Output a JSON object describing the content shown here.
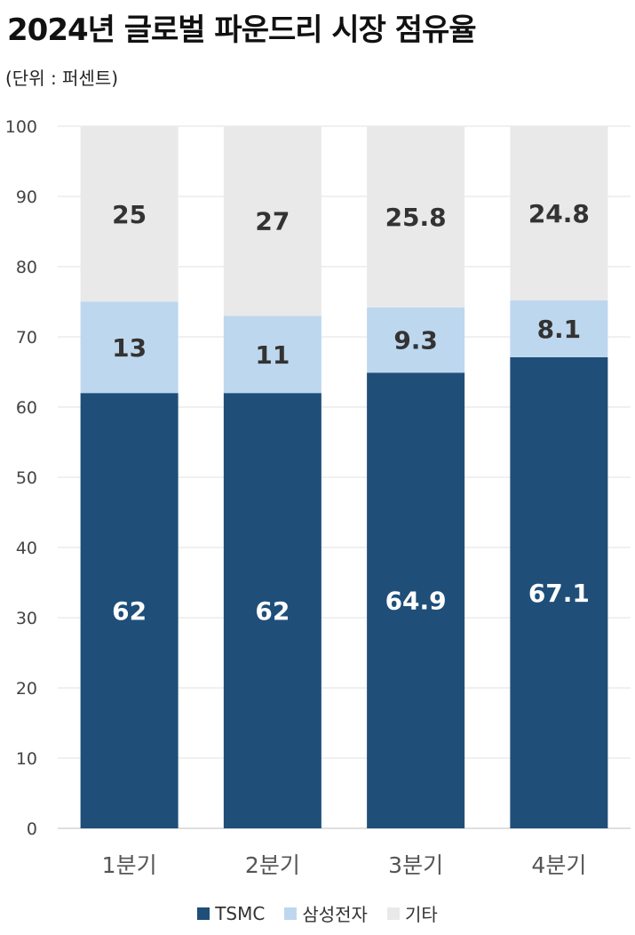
{
  "chart_data": {
    "type": "bar",
    "stacked": true,
    "title": "2024년 글로벌 파운드리 시장 점유율",
    "subtitle": "(단위 : 퍼센트)",
    "categories": [
      "1분기",
      "2분기",
      "3분기",
      "4분기"
    ],
    "series": [
      {
        "name": "TSMC",
        "values": [
          62,
          62,
          64.9,
          67.1
        ],
        "color": "#1F4E79",
        "label_color": "#ffffff"
      },
      {
        "name": "삼성전자",
        "values": [
          13,
          11,
          9.3,
          8.1
        ],
        "color": "#BDD7EE",
        "label_color": "#333333"
      },
      {
        "name": "기타",
        "values": [
          25,
          27,
          25.8,
          24.8
        ],
        "color": "#E9E9E9",
        "label_color": "#333333"
      }
    ],
    "ylim": [
      0,
      100
    ],
    "yticks": [
      0,
      10,
      20,
      30,
      40,
      50,
      60,
      70,
      80,
      90,
      100
    ],
    "grid": true,
    "legend_position": "bottom"
  }
}
